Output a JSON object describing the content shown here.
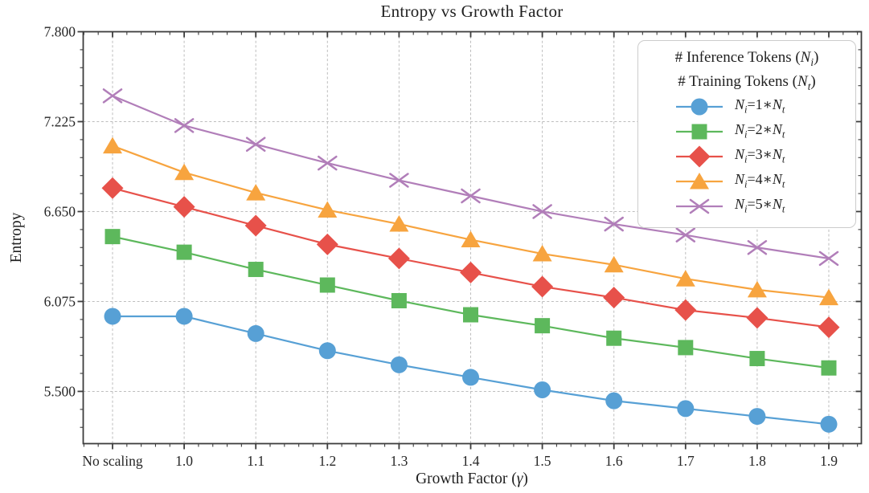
{
  "chart_data": {
    "type": "line",
    "title": "Entropy vs Growth Factor",
    "xlabel": "Growth Factor (γ)",
    "ylabel": "Entropy",
    "categories": [
      "No scaling",
      "1.0",
      "1.1",
      "1.2",
      "1.3",
      "1.4",
      "1.5",
      "1.6",
      "1.7",
      "1.8",
      "1.9"
    ],
    "y_ticks": [
      7.8,
      7.225,
      6.65,
      6.075,
      5.5
    ],
    "y_tick_labels": [
      "7.800",
      "7.225",
      "6.650",
      "6.075",
      "5.500"
    ],
    "ylim": [
      5.166,
      7.8
    ],
    "grid": true,
    "grid_style": "dashed",
    "legend": {
      "position": "upper right",
      "title_lines": [
        "# Inference Tokens (N_i)",
        "# Training Tokens (N_t)"
      ]
    },
    "series": [
      {
        "name": "N_i=1*N_t",
        "marker": "circle",
        "color": "#57A0D5",
        "values": [
          5.98,
          5.98,
          5.87,
          5.76,
          5.67,
          5.59,
          5.51,
          5.44,
          5.39,
          5.34,
          5.29
        ]
      },
      {
        "name": "N_i=2*N_t",
        "marker": "square",
        "color": "#5DB85C",
        "values": [
          6.49,
          6.39,
          6.28,
          6.18,
          6.08,
          5.99,
          5.92,
          5.84,
          5.78,
          5.71,
          5.65
        ]
      },
      {
        "name": "N_i=3*N_t",
        "marker": "diamond",
        "color": "#E7514A",
        "values": [
          6.8,
          6.68,
          6.56,
          6.44,
          6.35,
          6.26,
          6.17,
          6.1,
          6.02,
          5.97,
          5.91
        ]
      },
      {
        "name": "N_i=4*N_t",
        "marker": "triangle",
        "color": "#F7A43F",
        "values": [
          7.07,
          6.9,
          6.77,
          6.66,
          6.57,
          6.47,
          6.38,
          6.31,
          6.22,
          6.15,
          6.1
        ]
      },
      {
        "name": "N_i=5*N_t",
        "marker": "x",
        "color": "#B17EB9",
        "values": [
          7.39,
          7.2,
          7.08,
          6.96,
          6.85,
          6.75,
          6.65,
          6.57,
          6.5,
          6.42,
          6.35
        ]
      }
    ],
    "colors": {
      "grid": "#bdbdbd",
      "spine": "#3d3d3d",
      "text": "#262626",
      "legend_border": "#cccccc",
      "background": "#ffffff"
    }
  }
}
